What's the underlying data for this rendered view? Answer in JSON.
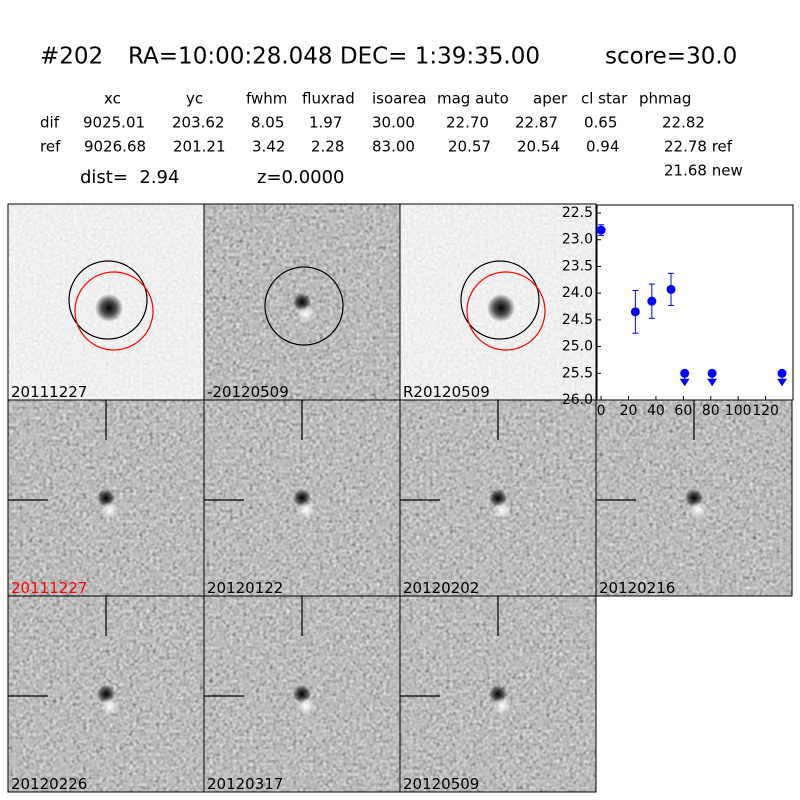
{
  "header": {
    "id": "#202",
    "coords": "RA=10:00:28.048 DEC= 1:39:35.00",
    "score": "score=30.0"
  },
  "table": {
    "columns": [
      "xc",
      "yc",
      "fwhm",
      "fluxrad",
      "isoarea",
      "mag auto",
      "aper",
      "cl star",
      "phmag"
    ],
    "rows": [
      [
        "dif",
        "9025.01",
        "203.62",
        "8.05",
        "1.97",
        "30.00",
        "22.70",
        "22.87",
        "0.65",
        "22.82"
      ],
      [
        "ref",
        "9026.68",
        "201.21",
        "3.42",
        "2.28",
        "83.00",
        "20.57",
        "20.54",
        "0.94",
        "22.78 ref"
      ]
    ],
    "extra": "21.68 new"
  },
  "info": {
    "dist": "dist=  2.94",
    "z": "z=0.0000"
  },
  "stamps": [
    {
      "label": "20111227"
    },
    {
      "label": "-20120509"
    },
    {
      "label": "R20120509"
    },
    {
      "label": "20111227"
    },
    {
      "label": "20120122"
    },
    {
      "label": "20120202"
    },
    {
      "label": "20120216"
    },
    {
      "label": "20120226"
    },
    {
      "label": "20120317"
    },
    {
      "label": "20120509"
    }
  ],
  "chart_data": {
    "type": "scatter",
    "color": "#0000ff",
    "x": [
      0,
      25,
      37,
      51
    ],
    "values": [
      22.82,
      24.35,
      24.15,
      23.93
    ],
    "errors": [
      0.1,
      0.4,
      0.32,
      0.3
    ],
    "limits": {
      "x": [
        61,
        81,
        132
      ],
      "values": [
        25.5,
        25.5,
        25.5
      ]
    },
    "xlim": [
      -3,
      140
    ],
    "ylim": [
      26.0,
      22.35
    ],
    "xticks": [
      0,
      20,
      40,
      60,
      80,
      100,
      120
    ],
    "yticks": [
      22.5,
      {
        "value": 23,
        "label": "23.0"
      },
      23.5,
      {
        "value": 24,
        "label": "24.0"
      },
      24.5,
      {
        "value": 25,
        "label": "25.0"
      },
      25.5,
      {
        "value": 26,
        "label": "26.0"
      }
    ]
  }
}
